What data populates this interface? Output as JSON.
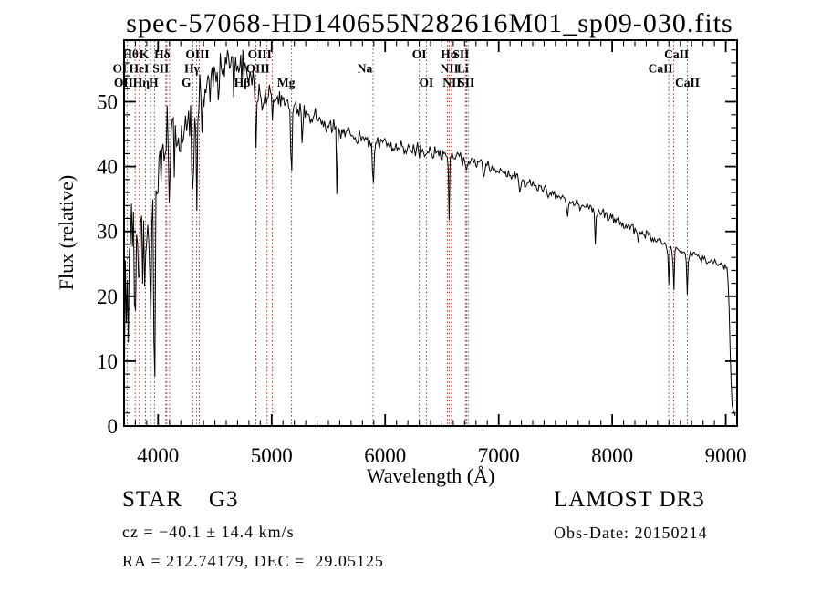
{
  "title": "spec-57068-HD140655N282616M01_sp09-030.fits",
  "footer": {
    "classification": "STAR    G3",
    "survey": "LAMOST DR3",
    "cz": "cz = −40.1 ± 14.4 km/s",
    "obs_date": "Obs-Date: 20150214",
    "ra_dec": "RA = 212.74179, DEC =  29.05125"
  },
  "chart_data": {
    "type": "line",
    "title": "spec-57068-HD140655N282616M01_sp09-030.fits",
    "xlabel": "Wavelength (Å)",
    "ylabel": "Flux (relative)",
    "xlim": [
      3700,
      9100
    ],
    "ylim": [
      0,
      59.5
    ],
    "x_ticks": [
      4000,
      5000,
      6000,
      7000,
      8000,
      9000
    ],
    "y_ticks": [
      0,
      10,
      20,
      30,
      40,
      50
    ],
    "x_minor_step": 100,
    "y_minor_step": 2,
    "grid": false,
    "legend": "none",
    "line_color": "#000000",
    "marker_color": "#9e352b",
    "marker_wavelengths": [
      3727,
      3798,
      3835,
      3889,
      3933,
      3968,
      4068,
      4076,
      4101,
      4305,
      4340,
      4363,
      4861,
      4959,
      5007,
      5175,
      5894,
      6300,
      6363,
      6548,
      6563,
      6583,
      6708,
      6717,
      6731,
      8498,
      8542,
      8662
    ],
    "line_labels": [
      {
        "text": "Hθ",
        "row": 1,
        "wavelength": 3798,
        "dx": -5
      },
      {
        "text": "K",
        "row": 1,
        "wavelength": 3933,
        "dx": -7
      },
      {
        "text": "Hδ",
        "row": 1,
        "wavelength": 4101,
        "dx": -8
      },
      {
        "text": "OIII",
        "row": 1,
        "wavelength": 4363,
        "dx": -2
      },
      {
        "text": "OIII",
        "row": 1,
        "wavelength": 4959,
        "dx": -8
      },
      {
        "text": "OI",
        "row": 1,
        "wavelength": 6300,
        "dx": 0
      },
      {
        "text": "Hα",
        "row": 1,
        "wavelength": 6563,
        "dx": 0
      },
      {
        "text": "SII",
        "row": 1,
        "wavelength": 6717,
        "dx": -6
      },
      {
        "text": "CaII",
        "row": 1,
        "wavelength": 8542,
        "dx": 3
      },
      {
        "text": "OI",
        "row": 2,
        "wavelength": 3727,
        "dx": -8
      },
      {
        "text": "HeI",
        "row": 2,
        "wavelength": 3889,
        "dx": -7
      },
      {
        "text": "SII",
        "row": 2,
        "wavelength": 4072,
        "dx": -6
      },
      {
        "text": "Hγ",
        "row": 2,
        "wavelength": 4340,
        "dx": -5
      },
      {
        "text": "OIII",
        "row": 2,
        "wavelength": 5007,
        "dx": -16
      },
      {
        "text": "Na",
        "row": 2,
        "wavelength": 5894,
        "dx": -9
      },
      {
        "text": "NII",
        "row": 2,
        "wavelength": 6583,
        "dx": -2
      },
      {
        "text": "Li",
        "row": 2,
        "wavelength": 6708,
        "dx": -3
      },
      {
        "text": "CaII",
        "row": 2,
        "wavelength": 8498,
        "dx": -9
      },
      {
        "text": "OII",
        "row": 3,
        "wavelength": 3727,
        "dx": -4
      },
      {
        "text": "Hη",
        "row": 3,
        "wavelength": 3835,
        "dx": 2
      },
      {
        "text": "H",
        "row": 3,
        "wavelength": 3968,
        "dx": -1
      },
      {
        "text": "G",
        "row": 3,
        "wavelength": 4305,
        "dx": -7
      },
      {
        "text": "Hβ",
        "row": 3,
        "wavelength": 4861,
        "dx": -15
      },
      {
        "text": "Mg",
        "row": 3,
        "wavelength": 5175,
        "dx": -6
      },
      {
        "text": "OI",
        "row": 3,
        "wavelength": 6363,
        "dx": 0
      },
      {
        "text": "NII",
        "row": 3,
        "wavelength": 6548,
        "dx": 5
      },
      {
        "text": "SII",
        "row": 3,
        "wavelength": 6731,
        "dx": -2
      },
      {
        "text": "CaII",
        "row": 3,
        "wavelength": 8662,
        "dx": 0
      }
    ],
    "continuum": [
      [
        3700,
        20
      ],
      [
        3720,
        24
      ],
      [
        3740,
        25
      ],
      [
        3760,
        26
      ],
      [
        3780,
        26
      ],
      [
        3800,
        27
      ],
      [
        3830,
        26
      ],
      [
        3860,
        28
      ],
      [
        3890,
        29
      ],
      [
        3920,
        31
      ],
      [
        3950,
        33
      ],
      [
        3980,
        36
      ],
      [
        4010,
        42
      ],
      [
        4040,
        44
      ],
      [
        4070,
        45
      ],
      [
        4100,
        45
      ],
      [
        4130,
        44
      ],
      [
        4160,
        44
      ],
      [
        4200,
        45
      ],
      [
        4250,
        46
      ],
      [
        4300,
        48
      ],
      [
        4350,
        50
      ],
      [
        4400,
        52
      ],
      [
        4450,
        53
      ],
      [
        4500,
        54
      ],
      [
        4550,
        55
      ],
      [
        4600,
        55.5
      ],
      [
        4650,
        56
      ],
      [
        4700,
        56
      ],
      [
        4750,
        55
      ],
      [
        4800,
        54
      ],
      [
        4850,
        53
      ],
      [
        4900,
        52
      ],
      [
        4950,
        51.5
      ],
      [
        5000,
        51
      ],
      [
        5100,
        50.3
      ],
      [
        5200,
        49.5
      ],
      [
        5300,
        48.2
      ],
      [
        5400,
        47.2
      ],
      [
        5500,
        46.2
      ],
      [
        5600,
        45.6
      ],
      [
        5700,
        45
      ],
      [
        5800,
        44.4
      ],
      [
        5900,
        43.9
      ],
      [
        6000,
        43.5
      ],
      [
        6100,
        43.2
      ],
      [
        6200,
        42.9
      ],
      [
        6300,
        42.6
      ],
      [
        6400,
        42.3
      ],
      [
        6500,
        42
      ],
      [
        6600,
        41.6
      ],
      [
        6700,
        41.1
      ],
      [
        6800,
        40.6
      ],
      [
        6900,
        40
      ],
      [
        7000,
        39.3
      ],
      [
        7100,
        38.6
      ],
      [
        7200,
        37.9
      ],
      [
        7300,
        37.1
      ],
      [
        7400,
        36.4
      ],
      [
        7500,
        35.6
      ],
      [
        7600,
        34.9
      ],
      [
        7700,
        34.2
      ],
      [
        7800,
        33.6
      ],
      [
        7900,
        32.9
      ],
      [
        8000,
        32.1
      ],
      [
        8100,
        31.2
      ],
      [
        8200,
        30.3
      ],
      [
        8300,
        29.4
      ],
      [
        8400,
        28.5
      ],
      [
        8500,
        27.7
      ],
      [
        8600,
        27.1
      ],
      [
        8700,
        26.4
      ],
      [
        8800,
        25.8
      ],
      [
        8900,
        25.2
      ],
      [
        9000,
        24.6
      ],
      [
        9015,
        24.2
      ],
      [
        9030,
        18
      ],
      [
        9045,
        8
      ],
      [
        9060,
        2.5
      ],
      [
        9085,
        2
      ]
    ],
    "absorption_features": [
      [
        3702,
        18,
        4
      ],
      [
        3727,
        5,
        6
      ],
      [
        3798,
        9,
        5
      ],
      [
        3835,
        11,
        5
      ],
      [
        3889,
        12,
        5
      ],
      [
        3933,
        23,
        6
      ],
      [
        3968,
        21,
        6
      ],
      [
        4026,
        5,
        4
      ],
      [
        4072,
        7,
        5
      ],
      [
        4101,
        16,
        5
      ],
      [
        4144,
        6,
        4
      ],
      [
        4227,
        6,
        4
      ],
      [
        4305,
        13,
        7
      ],
      [
        4340,
        17,
        5
      ],
      [
        4383,
        10,
        4
      ],
      [
        4455,
        6,
        4
      ],
      [
        4531,
        5,
        4
      ],
      [
        4668,
        5,
        4
      ],
      [
        4861,
        13,
        5
      ],
      [
        4920,
        4,
        4
      ],
      [
        4959,
        3,
        4
      ],
      [
        5007,
        3,
        4
      ],
      [
        5175,
        12,
        7
      ],
      [
        5270,
        5,
        5
      ],
      [
        5577,
        15,
        3
      ],
      [
        5894,
        7.5,
        6
      ],
      [
        6300,
        2.5,
        4
      ],
      [
        6363,
        1.5,
        4
      ],
      [
        6495,
        2,
        4
      ],
      [
        6563,
        10,
        4.5
      ],
      [
        6717,
        1.5,
        4
      ],
      [
        6731,
        1.5,
        4
      ],
      [
        6870,
        2.5,
        6
      ],
      [
        7190,
        2,
        6
      ],
      [
        7605,
        3,
        7
      ],
      [
        7850,
        5,
        4
      ],
      [
        8230,
        2,
        6
      ],
      [
        8498,
        6,
        5
      ],
      [
        8542,
        7.5,
        5
      ],
      [
        8662,
        7,
        5
      ]
    ],
    "noise_regions": [
      [
        3700,
        3770,
        9
      ],
      [
        3770,
        3990,
        7.5
      ],
      [
        3990,
        4250,
        4.5
      ],
      [
        4250,
        4500,
        3
      ],
      [
        4500,
        4900,
        2.2
      ],
      [
        4900,
        5400,
        1.4
      ],
      [
        5400,
        6000,
        1.0
      ],
      [
        6000,
        6700,
        0.8
      ],
      [
        6700,
        7500,
        0.7
      ],
      [
        7500,
        8300,
        0.6
      ],
      [
        8300,
        9010,
        0.55
      ],
      [
        9010,
        9090,
        0.4
      ]
    ],
    "noise_seed": 20150214,
    "x_start": 3702,
    "x_end": 9085,
    "sample_step": 9
  }
}
